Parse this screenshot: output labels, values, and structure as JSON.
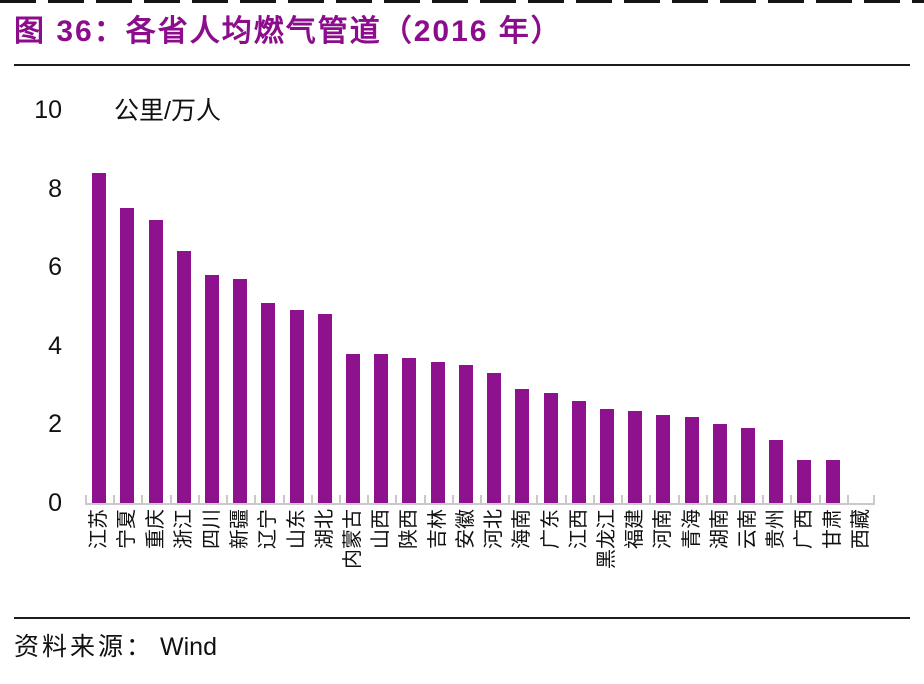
{
  "figure": {
    "title": "图 36：各省人均燃气管道（2016 年）",
    "title_color": "#8C0D8C",
    "source_label": "资料来源：",
    "source_value": "Wind"
  },
  "chart_data": {
    "type": "bar",
    "title": "各省人均燃气管道（2016 年）",
    "unit_label": "公里/万人",
    "xlabel": "",
    "ylabel": "公里/万人",
    "ylim": [
      0,
      10
    ],
    "yticks": [
      0,
      2,
      4,
      6,
      8,
      10
    ],
    "grid": false,
    "legend": "none",
    "bar_color": "#8E118E",
    "axis_color": "#C9C9C9",
    "categories": [
      "江苏",
      "宁夏",
      "重庆",
      "浙江",
      "四川",
      "新疆",
      "辽宁",
      "山东",
      "湖北",
      "内蒙古",
      "山西",
      "陕西",
      "吉林",
      "安徽",
      "河北",
      "海南",
      "广东",
      "江西",
      "黑龙江",
      "福建",
      "河南",
      "青海",
      "湖南",
      "云南",
      "贵州",
      "广西",
      "甘肃",
      "西藏"
    ],
    "values": [
      8.4,
      7.5,
      7.2,
      6.4,
      5.8,
      5.7,
      5.1,
      4.9,
      4.8,
      3.8,
      3.8,
      3.7,
      3.6,
      3.5,
      3.3,
      2.9,
      2.8,
      2.6,
      2.4,
      2.35,
      2.25,
      2.2,
      2.0,
      1.9,
      1.6,
      1.1,
      1.1,
      0
    ]
  }
}
